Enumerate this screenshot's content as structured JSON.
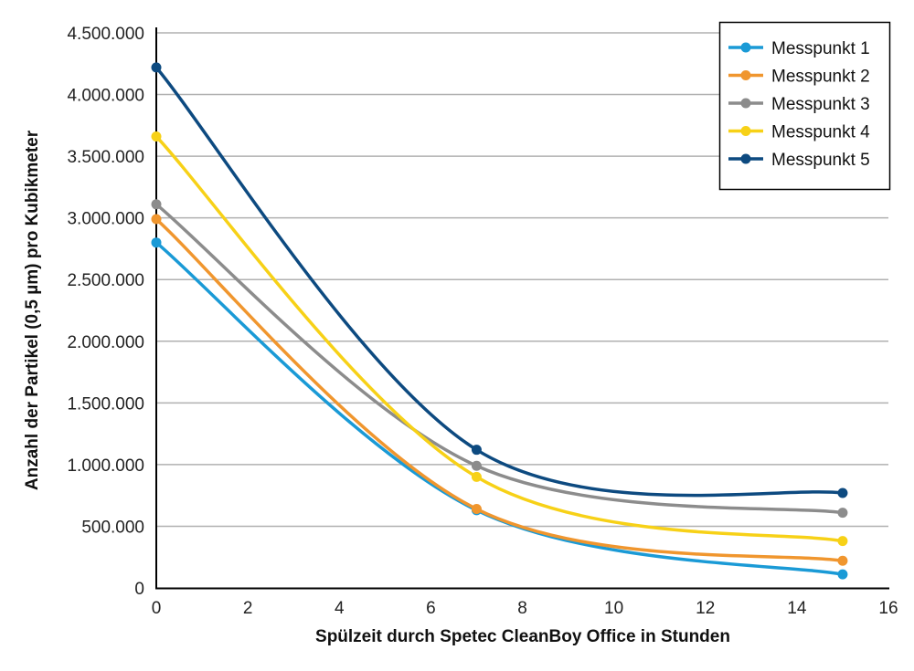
{
  "chart_data": {
    "type": "line",
    "title": "",
    "xlabel": "Spülzeit durch Spetec CleanBoy Office in Stunden",
    "ylabel": "Anzahl der Partikel (0,5 µm) pro Kubikmeter",
    "xlim": [
      0,
      16
    ],
    "ylim": [
      0,
      4500000
    ],
    "x_ticks": [
      0,
      2,
      4,
      6,
      8,
      10,
      12,
      14,
      16
    ],
    "y_ticks": [
      0,
      500000,
      1000000,
      1500000,
      2000000,
      2500000,
      3000000,
      3500000,
      4000000,
      4500000
    ],
    "y_tick_labels": [
      "0",
      "500.000",
      "1.000.000",
      "1.500.000",
      "2.000.000",
      "2.500.000",
      "3.000.000",
      "3.500.000",
      "4.000.000",
      "4.500.000"
    ],
    "grid": "horizontal",
    "legend_position": "top-right",
    "x": [
      0,
      7,
      15
    ],
    "series": [
      {
        "name": "Messpunkt 1",
        "color": "#1a9ad6",
        "values": [
          2800000,
          630000,
          110000
        ]
      },
      {
        "name": "Messpunkt 2",
        "color": "#f0962e",
        "values": [
          2990000,
          640000,
          220000
        ]
      },
      {
        "name": "Messpunkt 3",
        "color": "#8c8c8c",
        "values": [
          3110000,
          990000,
          610000
        ]
      },
      {
        "name": "Messpunkt 4",
        "color": "#f7d117",
        "values": [
          3660000,
          900000,
          380000
        ]
      },
      {
        "name": "Messpunkt 5",
        "color": "#0d4a80",
        "values": [
          4220000,
          1120000,
          770000
        ]
      }
    ]
  }
}
